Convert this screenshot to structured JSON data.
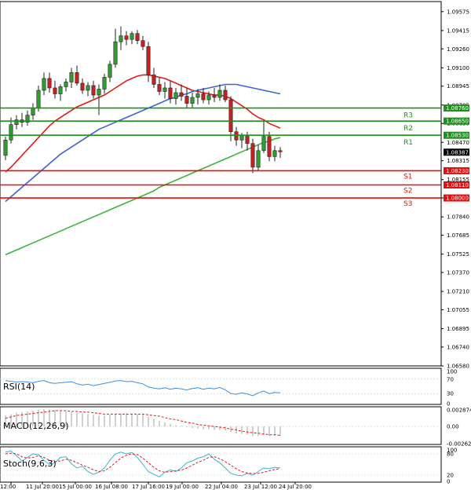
{
  "chart_data": {
    "type": "candlestick",
    "instrument": "",
    "price_axis": {
      "ticks": [
        "1.09575",
        "1.09415",
        "1.09260",
        "1.09100",
        "1.08945",
        "1.08785",
        "1.08630",
        "1.08470",
        "1.08315",
        "1.08155",
        "1.08000",
        "1.07840",
        "1.07685",
        "1.07525",
        "1.07370",
        "1.07210",
        "1.07055",
        "1.06895",
        "1.06740",
        "1.06580"
      ],
      "range": [
        1.0658,
        1.0966
      ]
    },
    "time_axis": {
      "labels": [
        "12:00",
        "11 Jul 20:00",
        "15 Jul 00:00",
        "16 Jul 08:00",
        "17 Jul 16:00",
        "19 Jul 00:00",
        "22 Jul 04:00",
        "23 Jul 12:00",
        "24 Jul 20:00"
      ]
    },
    "current_price": "1.08387",
    "levels": [
      {
        "name": "R3",
        "value": "1.08760",
        "kind": "resistance",
        "color": "#1f8f1f"
      },
      {
        "name": "R2",
        "value": "1.08650",
        "kind": "resistance",
        "color": "#1f8f1f"
      },
      {
        "name": "R1",
        "value": "1.08530",
        "kind": "resistance",
        "color": "#1f8f1f"
      },
      {
        "name": "S1",
        "value": "1.08230",
        "kind": "support",
        "color": "#e01010"
      },
      {
        "name": "S2",
        "value": "1.08110",
        "kind": "support",
        "color": "#e01010"
      },
      {
        "name": "S3",
        "value": "1.08000",
        "kind": "support",
        "color": "#e01010"
      }
    ],
    "candles": [
      {
        "o": 1.0836,
        "h": 1.0852,
        "l": 1.0832,
        "c": 1.0849
      },
      {
        "o": 1.0849,
        "h": 1.0868,
        "l": 1.0846,
        "c": 1.0862
      },
      {
        "o": 1.0862,
        "h": 1.087,
        "l": 1.0858,
        "c": 1.0866
      },
      {
        "o": 1.0866,
        "h": 1.0872,
        "l": 1.086,
        "c": 1.0864
      },
      {
        "o": 1.0864,
        "h": 1.0874,
        "l": 1.0861,
        "c": 1.087
      },
      {
        "o": 1.087,
        "h": 1.088,
        "l": 1.0866,
        "c": 1.0876
      },
      {
        "o": 1.0876,
        "h": 1.0895,
        "l": 1.0873,
        "c": 1.0891
      },
      {
        "o": 1.0891,
        "h": 1.0906,
        "l": 1.0887,
        "c": 1.0901
      },
      {
        "o": 1.0901,
        "h": 1.0906,
        "l": 1.0889,
        "c": 1.0893
      },
      {
        "o": 1.0893,
        "h": 1.0899,
        "l": 1.0884,
        "c": 1.0888
      },
      {
        "o": 1.0888,
        "h": 1.0896,
        "l": 1.0882,
        "c": 1.0894
      },
      {
        "o": 1.0894,
        "h": 1.0901,
        "l": 1.089,
        "c": 1.0898
      },
      {
        "o": 1.0898,
        "h": 1.091,
        "l": 1.0893,
        "c": 1.0906
      },
      {
        "o": 1.0906,
        "h": 1.0912,
        "l": 1.0895,
        "c": 1.0897
      },
      {
        "o": 1.0897,
        "h": 1.0901,
        "l": 1.0888,
        "c": 1.0891
      },
      {
        "o": 1.0891,
        "h": 1.0898,
        "l": 1.0886,
        "c": 1.0895
      },
      {
        "o": 1.0895,
        "h": 1.0899,
        "l": 1.0884,
        "c": 1.0887
      },
      {
        "o": 1.0887,
        "h": 1.0896,
        "l": 1.087,
        "c": 1.0892
      },
      {
        "o": 1.0892,
        "h": 1.0905,
        "l": 1.0888,
        "c": 1.0902
      },
      {
        "o": 1.0902,
        "h": 1.0916,
        "l": 1.0898,
        "c": 1.0913
      },
      {
        "o": 1.0913,
        "h": 1.0943,
        "l": 1.091,
        "c": 1.0932
      },
      {
        "o": 1.0932,
        "h": 1.0945,
        "l": 1.0925,
        "c": 1.0937
      },
      {
        "o": 1.0937,
        "h": 1.0941,
        "l": 1.0929,
        "c": 1.0934
      },
      {
        "o": 1.0934,
        "h": 1.0941,
        "l": 1.093,
        "c": 1.0939
      },
      {
        "o": 1.0939,
        "h": 1.0942,
        "l": 1.093,
        "c": 1.0933
      },
      {
        "o": 1.0933,
        "h": 1.0937,
        "l": 1.0925,
        "c": 1.0928
      },
      {
        "o": 1.0928,
        "h": 1.0932,
        "l": 1.0898,
        "c": 1.0904
      },
      {
        "o": 1.0904,
        "h": 1.091,
        "l": 1.0893,
        "c": 1.0896
      },
      {
        "o": 1.0896,
        "h": 1.0902,
        "l": 1.0887,
        "c": 1.089
      },
      {
        "o": 1.089,
        "h": 1.0898,
        "l": 1.0884,
        "c": 1.0893
      },
      {
        "o": 1.0893,
        "h": 1.0899,
        "l": 1.088,
        "c": 1.0884
      },
      {
        "o": 1.0884,
        "h": 1.0893,
        "l": 1.0879,
        "c": 1.0889
      },
      {
        "o": 1.0889,
        "h": 1.0896,
        "l": 1.0882,
        "c": 1.0886
      },
      {
        "o": 1.0886,
        "h": 1.0893,
        "l": 1.0876,
        "c": 1.088
      },
      {
        "o": 1.088,
        "h": 1.0889,
        "l": 1.0876,
        "c": 1.0885
      },
      {
        "o": 1.0885,
        "h": 1.0892,
        "l": 1.0879,
        "c": 1.0888
      },
      {
        "o": 1.0888,
        "h": 1.0893,
        "l": 1.088,
        "c": 1.0883
      },
      {
        "o": 1.0883,
        "h": 1.089,
        "l": 1.0879,
        "c": 1.0887
      },
      {
        "o": 1.0887,
        "h": 1.0893,
        "l": 1.0881,
        "c": 1.0885
      },
      {
        "o": 1.0885,
        "h": 1.0896,
        "l": 1.0882,
        "c": 1.0891
      },
      {
        "o": 1.0891,
        "h": 1.0895,
        "l": 1.0881,
        "c": 1.0883
      },
      {
        "o": 1.0883,
        "h": 1.0886,
        "l": 1.0848,
        "c": 1.0856
      },
      {
        "o": 1.0856,
        "h": 1.086,
        "l": 1.0844,
        "c": 1.0849
      },
      {
        "o": 1.0849,
        "h": 1.0855,
        "l": 1.0842,
        "c": 1.0853
      },
      {
        "o": 1.0853,
        "h": 1.0856,
        "l": 1.084,
        "c": 1.0846
      },
      {
        "o": 1.0846,
        "h": 1.085,
        "l": 1.0821,
        "c": 1.0826
      },
      {
        "o": 1.0826,
        "h": 1.0845,
        "l": 1.0823,
        "c": 1.084
      },
      {
        "o": 1.084,
        "h": 1.0865,
        "l": 1.0838,
        "c": 1.0852
      },
      {
        "o": 1.0852,
        "h": 1.0856,
        "l": 1.0831,
        "c": 1.0835
      },
      {
        "o": 1.0835,
        "h": 1.0844,
        "l": 1.0831,
        "c": 1.084
      },
      {
        "o": 1.084,
        "h": 1.0843,
        "l": 1.0834,
        "c": 1.0839
      }
    ],
    "moving_averages": [
      {
        "name": "MA red",
        "color": "#e41a1a",
        "values": [
          1.0822,
          1.0826,
          1.0831,
          1.0836,
          1.0841,
          1.0846,
          1.0851,
          1.0856,
          1.0861,
          1.0865,
          1.0868,
          1.0871,
          1.0874,
          1.0877,
          1.0879,
          1.0881,
          1.0883,
          1.0885,
          1.0887,
          1.089,
          1.0893,
          1.0896,
          1.0899,
          1.0901,
          1.0903,
          1.0904,
          1.0904,
          1.0903,
          1.0902,
          1.0901,
          1.0899,
          1.0897,
          1.0895,
          1.0893,
          1.0891,
          1.089,
          1.0889,
          1.0888,
          1.0887,
          1.0887,
          1.0886,
          1.0884,
          1.0881,
          1.0878,
          1.0875,
          1.0871,
          1.0868,
          1.0866,
          1.0863,
          1.0861,
          1.0859
        ]
      },
      {
        "name": "MA blue",
        "color": "#3c64d2",
        "values": [
          1.0797,
          1.0801,
          1.0805,
          1.0809,
          1.0813,
          1.0817,
          1.0821,
          1.0825,
          1.0829,
          1.0833,
          1.0837,
          1.084,
          1.0843,
          1.0846,
          1.0849,
          1.0852,
          1.0855,
          1.0858,
          1.086,
          1.0862,
          1.0864,
          1.0866,
          1.0868,
          1.087,
          1.0872,
          1.0874,
          1.0876,
          1.0878,
          1.088,
          1.0882,
          1.0884,
          1.0885,
          1.0887,
          1.0888,
          1.089,
          1.0891,
          1.0892,
          1.0893,
          1.0894,
          1.0895,
          1.0896,
          1.0896,
          1.0896,
          1.0895,
          1.0894,
          1.0893,
          1.0892,
          1.0891,
          1.089,
          1.0889,
          1.0888
        ]
      },
      {
        "name": "MA green",
        "color": "#3cb43c",
        "values": [
          1.0752,
          1.0754,
          1.0756,
          1.0758,
          1.076,
          1.0762,
          1.0764,
          1.0766,
          1.0768,
          1.077,
          1.0772,
          1.0774,
          1.0776,
          1.0778,
          1.078,
          1.0782,
          1.0784,
          1.0786,
          1.0788,
          1.079,
          1.0792,
          1.0794,
          1.0796,
          1.0798,
          1.08,
          1.0802,
          1.0804,
          1.0806,
          1.0809,
          1.0811,
          1.0813,
          1.0815,
          1.0817,
          1.0819,
          1.0821,
          1.0823,
          1.0825,
          1.0827,
          1.0829,
          1.0831,
          1.0833,
          1.0835,
          1.0837,
          1.0839,
          1.0841,
          1.0843,
          1.0845,
          1.0847,
          1.0848,
          1.085,
          1.0851
        ]
      }
    ],
    "indicators": [
      {
        "id": "rsi",
        "label": "RSI(14)",
        "ticks": [
          "100",
          "70",
          "30",
          "0"
        ],
        "range": [
          0,
          100
        ],
        "series": [
          {
            "color": "#3c8fe0",
            "dash": false,
            "values": [
              66,
              64,
              62,
              63,
              62,
              60,
              64,
              66,
              60,
              58,
              60,
              61,
              63,
              57,
              54,
              56,
              52,
              55,
              58,
              61,
              65,
              66,
              63,
              64,
              60,
              57,
              48,
              45,
              43,
              46,
              42,
              45,
              43,
              40,
              44,
              46,
              42,
              45,
              43,
              47,
              40,
              30,
              28,
              32,
              29,
              24,
              32,
              37,
              30,
              33,
              32
            ]
          }
        ]
      },
      {
        "id": "macd",
        "label": "MACD(12,26,9)",
        "ticks": [
          "0.002874",
          "0.00",
          "-0.00262"
        ],
        "range": [
          -0.00262,
          0.002874
        ],
        "histogram": {
          "color": "#b0b0b0",
          "values": [
            0.0016,
            0.0018,
            0.002,
            0.0021,
            0.0022,
            0.0023,
            0.0024,
            0.0025,
            0.0025,
            0.0024,
            0.0023,
            0.0022,
            0.0021,
            0.002,
            0.0019,
            0.0018,
            0.0017,
            0.0016,
            0.0016,
            0.0017,
            0.0018,
            0.0019,
            0.0019,
            0.0019,
            0.0018,
            0.0017,
            0.0014,
            0.0011,
            0.0008,
            0.0006,
            0.0004,
            0.0002,
            0.0001,
            -0.0001,
            -0.0002,
            -0.0003,
            -0.0004,
            -0.0004,
            -0.0005,
            -0.0005,
            -0.0006,
            -0.0008,
            -0.001,
            -0.0011,
            -0.0012,
            -0.0014,
            -0.0014,
            -0.0013,
            -0.0014,
            -0.0014,
            -0.0014
          ]
        },
        "series": [
          {
            "color": "#e41a1a",
            "dash": true,
            "values": [
              0.0012,
              0.0014,
              0.0016,
              0.0017,
              0.0018,
              0.0019,
              0.002,
              0.0021,
              0.0022,
              0.0023,
              0.0023,
              0.0023,
              0.0022,
              0.0022,
              0.0021,
              0.0021,
              0.002,
              0.0019,
              0.0018,
              0.0018,
              0.0018,
              0.0018,
              0.0018,
              0.0018,
              0.0018,
              0.0018,
              0.0017,
              0.0016,
              0.0015,
              0.0013,
              0.0011,
              0.001,
              0.0008,
              0.0006,
              0.0005,
              0.0003,
              0.0002,
              0.0001,
              0.0,
              -0.0001,
              -0.0002,
              -0.0004,
              -0.0005,
              -0.0007,
              -0.0008,
              -0.0009,
              -0.001,
              -0.0011,
              -0.0012,
              -0.0012,
              -0.0013
            ]
          }
        ]
      },
      {
        "id": "stoch",
        "label": "Stoch(9,6,3)",
        "ticks": [
          "100",
          "80",
          "20",
          "0"
        ],
        "range": [
          0,
          100
        ],
        "series": [
          {
            "color": "#3cb4c8",
            "dash": false,
            "values": [
              85,
              88,
              75,
              60,
              70,
              80,
              78,
              62,
              50,
              55,
              70,
              72,
              52,
              40,
              45,
              30,
              22,
              28,
              40,
              62,
              80,
              85,
              80,
              84,
              70,
              50,
              30,
              22,
              15,
              28,
              35,
              30,
              40,
              55,
              60,
              68,
              72,
              80,
              65,
              55,
              40,
              25,
              20,
              18,
              25,
              20,
              30,
              40,
              38,
              42,
              40
            ]
          },
          {
            "color": "#e41a1a",
            "dash": true,
            "values": [
              80,
              82,
              80,
              72,
              68,
              70,
              75,
              70,
              62,
              58,
              60,
              65,
              62,
              55,
              48,
              42,
              35,
              30,
              32,
              42,
              55,
              68,
              76,
              80,
              78,
              68,
              55,
              42,
              32,
              28,
              30,
              32,
              34,
              40,
              48,
              56,
              62,
              70,
              72,
              66,
              58,
              48,
              38,
              30,
              26,
              24,
              25,
              28,
              32,
              36,
              38
            ]
          }
        ]
      }
    ]
  }
}
